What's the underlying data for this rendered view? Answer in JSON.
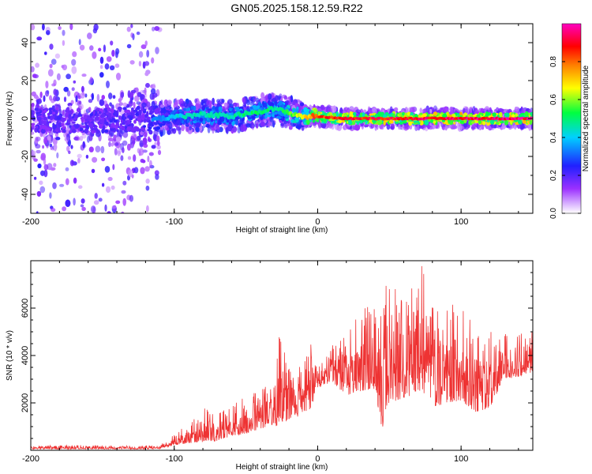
{
  "figure": {
    "title": "GN05.2025.158.12.59.R22"
  },
  "chart_data": [
    {
      "type": "heatmap",
      "xlabel": "Height of straight line (km)",
      "ylabel": "Frequency (Hz)",
      "xlim": [
        -200,
        150
      ],
      "ylim": [
        -50,
        50
      ],
      "xticks": [
        -200,
        -100,
        0,
        100
      ],
      "xtick_labels": [
        "-200",
        "-100",
        "0",
        "100"
      ],
      "yticks": [
        -40,
        -20,
        0,
        20,
        40
      ],
      "ytick_labels": [
        "-40",
        "-20",
        "0",
        "20",
        "40"
      ],
      "colorbar": {
        "label": "Normalized spectral amplitude",
        "range": [
          0,
          1
        ],
        "ticks": [
          0.0,
          0.2,
          0.4,
          0.6,
          0.8
        ],
        "tick_labels": [
          "0.0",
          "0.2",
          "0.4",
          "0.6",
          "0.8"
        ],
        "colors": [
          "#ffffff",
          "#9b30ff",
          "#2020ff",
          "#00d0ff",
          "#00ff40",
          "#ffff00",
          "#ff6000",
          "#ff0000",
          "#ff00c0"
        ]
      },
      "ridge": {
        "description_free": true,
        "x": [
          -200,
          -150,
          -110,
          -100,
          -80,
          -60,
          -40,
          -30,
          -20,
          -10,
          0,
          20,
          50,
          100,
          150
        ],
        "y": [
          -1,
          -1,
          0,
          1,
          2,
          1,
          4,
          5,
          3,
          1,
          1,
          0,
          0,
          0,
          0
        ],
        "amplitude": [
          0.3,
          0.3,
          0.35,
          0.45,
          0.5,
          0.5,
          0.55,
          0.5,
          0.6,
          0.7,
          0.9,
          0.95,
          0.95,
          1.0,
          1.0
        ]
      }
    },
    {
      "type": "line",
      "xlabel": "Height of straight line (km)",
      "ylabel": "SNR (10 * v/v)",
      "xlim": [
        -200,
        150
      ],
      "ylim": [
        0,
        8000
      ],
      "xticks": [
        -200,
        -100,
        0,
        100
      ],
      "xtick_labels": [
        "-200",
        "-100",
        "0",
        "100"
      ],
      "yticks": [
        2000,
        4000,
        6000
      ],
      "ytick_labels": [
        "2000",
        "4000",
        "6000"
      ],
      "color": "#ee3333",
      "x": [
        -200,
        -180,
        -160,
        -140,
        -120,
        -110,
        -100,
        -90,
        -80,
        -70,
        -60,
        -50,
        -40,
        -30,
        -27,
        -25,
        -20,
        -10,
        -5,
        0,
        10,
        20,
        30,
        40,
        45,
        50,
        60,
        70,
        72,
        80,
        90,
        100,
        110,
        120,
        130,
        140,
        150
      ],
      "envelope_max": [
        200,
        200,
        220,
        180,
        200,
        200,
        700,
        1100,
        1800,
        1500,
        1900,
        2300,
        2500,
        3000,
        4800,
        4500,
        3500,
        3900,
        5300,
        3500,
        4400,
        5300,
        5900,
        6200,
        7100,
        6800,
        6800,
        6900,
        7900,
        6000,
        6400,
        6000,
        5200,
        5000,
        4900,
        4900,
        5000
      ],
      "envelope_min": [
        50,
        50,
        60,
        50,
        50,
        70,
        200,
        300,
        350,
        400,
        600,
        700,
        900,
        1100,
        900,
        1000,
        1300,
        1500,
        1700,
        2600,
        2900,
        2300,
        2500,
        2600,
        800,
        2000,
        2200,
        2400,
        2600,
        1800,
        2000,
        2100,
        1600,
        1800,
        3000,
        3100,
        3300
      ]
    }
  ]
}
